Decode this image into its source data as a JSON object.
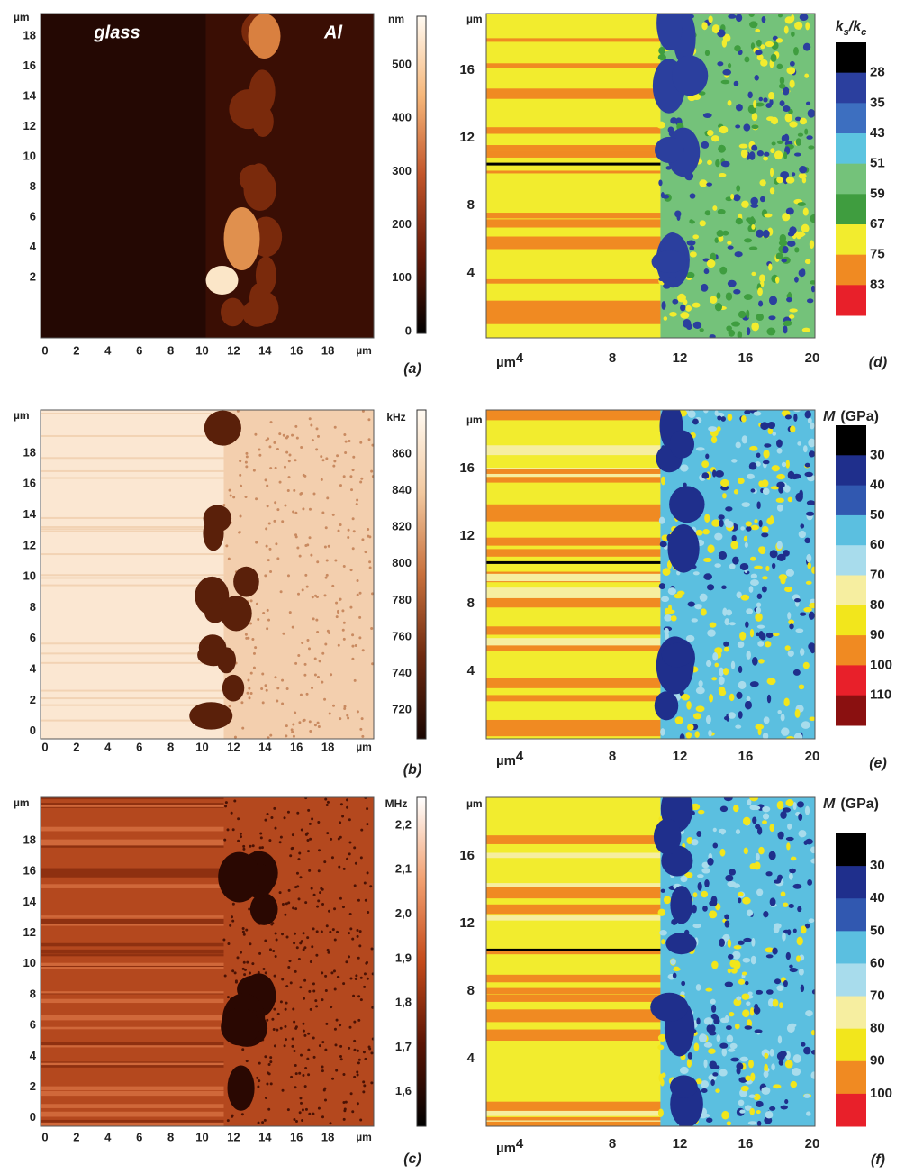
{
  "panels": [
    {
      "label": "(a)",
      "annotations": [
        "glass",
        "Al"
      ],
      "y_unit": "µm",
      "y_ticks": [
        "18",
        "16",
        "14",
        "12",
        "10",
        "8",
        "6",
        "4",
        "2"
      ],
      "x_unit": "µm",
      "x_ticks": [
        "0",
        "2",
        "4",
        "6",
        "8",
        "10",
        "12",
        "14",
        "16",
        "18"
      ],
      "colorbar_unit": "nm",
      "colorbar_ticks": [
        "500",
        "400",
        "300",
        "200",
        "100",
        "0"
      ],
      "colorbar_colors": [
        "#fffaf2",
        "#f6b77a",
        "#c2552a",
        "#6a1a08",
        "#000000"
      ]
    },
    {
      "label": "(d)",
      "y_unit": "µm",
      "y_ticks": [
        "16",
        "12",
        "8",
        "4"
      ],
      "x_unit": "µm",
      "x_ticks": [
        "4",
        "8",
        "12",
        "16",
        "20"
      ],
      "colorbar_title": [
        {
          "text": "k"
        },
        {
          "text": "s",
          "sub": true
        },
        {
          "text": "/k"
        },
        {
          "text": "c",
          "sub": true
        }
      ],
      "colorbar_ticks": [
        "28",
        "35",
        "43",
        "51",
        "59",
        "67",
        "75",
        "83"
      ],
      "colorbar_colors": [
        "#000000",
        "#2b3f9e",
        "#3d6fc0",
        "#5cc4e0",
        "#74c27a",
        "#3f9d3f",
        "#f2ec2e",
        "#f08a22",
        "#e8202a"
      ]
    },
    {
      "label": "(b)",
      "y_unit": "µm",
      "y_ticks": [
        "18",
        "16",
        "14",
        "12",
        "10",
        "8",
        "6",
        "4",
        "2",
        "0"
      ],
      "x_unit": "µm",
      "x_ticks": [
        "0",
        "2",
        "4",
        "6",
        "8",
        "10",
        "12",
        "14",
        "16",
        "18"
      ],
      "colorbar_unit": "kHz",
      "colorbar_ticks": [
        "860",
        "840",
        "820",
        "800",
        "780",
        "760",
        "740",
        "720"
      ],
      "colorbar_colors": [
        "#fffaf2",
        "#f2c9a0",
        "#c8703c",
        "#6e2a10",
        "#1a0602"
      ]
    },
    {
      "label": "(e)",
      "y_unit": "µm",
      "y_ticks": [
        "16",
        "12",
        "8",
        "4"
      ],
      "x_unit": "µm",
      "x_ticks": [
        "4",
        "8",
        "12",
        "16",
        "20"
      ],
      "colorbar_title": [
        {
          "text": "M",
          "italic": true
        },
        {
          "text": "(GPa)"
        }
      ],
      "colorbar_ticks": [
        "30",
        "40",
        "50",
        "60",
        "70",
        "80",
        "90",
        "100",
        "110"
      ],
      "colorbar_colors": [
        "#000000",
        "#1f2f8c",
        "#3158b0",
        "#5bbfe0",
        "#a8dcec",
        "#f6eea0",
        "#f2e61c",
        "#f08a22",
        "#e8202a",
        "#8a1010"
      ]
    },
    {
      "label": "(c)",
      "y_unit": "µm",
      "y_ticks": [
        "18",
        "16",
        "14",
        "12",
        "10",
        "8",
        "6",
        "4",
        "2",
        "0"
      ],
      "x_unit": "µm",
      "x_ticks": [
        "0",
        "2",
        "4",
        "6",
        "8",
        "10",
        "12",
        "14",
        "16",
        "18"
      ],
      "colorbar_unit": "MHz",
      "colorbar_ticks": [
        "2,2",
        "2,1",
        "2,0",
        "1,9",
        "1,8",
        "1,7",
        "1,6"
      ],
      "colorbar_colors": [
        "#ffffff",
        "#f2a070",
        "#c44a1a",
        "#5a1404",
        "#000000"
      ]
    },
    {
      "label": "(f)",
      "y_unit": "µm",
      "y_ticks": [
        "16",
        "12",
        "8",
        "4"
      ],
      "x_unit": "µm",
      "x_ticks": [
        "4",
        "8",
        "12",
        "16",
        "20"
      ],
      "colorbar_title": [
        {
          "text": "M",
          "italic": true
        },
        {
          "text": "(GPa)"
        }
      ],
      "colorbar_ticks": [
        "30",
        "40",
        "50",
        "60",
        "70",
        "80",
        "90",
        "100"
      ],
      "colorbar_colors": [
        "#000000",
        "#1f2f8c",
        "#3158b0",
        "#5bbfe0",
        "#a8dcec",
        "#f6eea0",
        "#f2e61c",
        "#f08a22",
        "#e8202a"
      ]
    }
  ]
}
